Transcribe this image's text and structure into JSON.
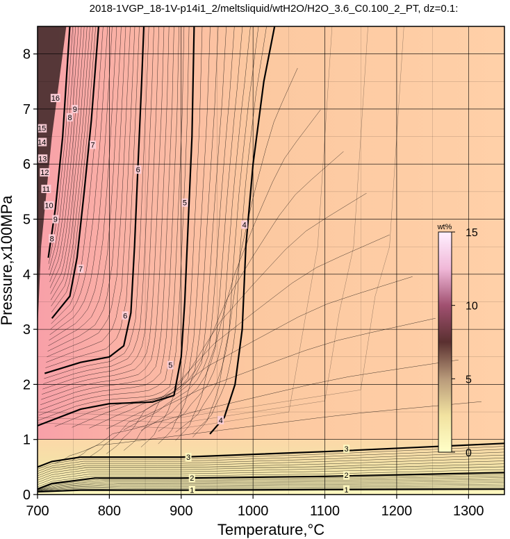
{
  "chart_data": {
    "type": "heatmap",
    "title": "2018-1VGP_18-1V-p14i1_2/meltsliquid/wtH2O/H2O_3.6_C0.100_2_PT, dz=0.1:",
    "xlabel": "Temperature,°C",
    "ylabel": "Pressure,x100MPa",
    "xlim": [
      700,
      1350
    ],
    "ylim": [
      0,
      8.5
    ],
    "x_ticks": [
      700,
      800,
      900,
      1000,
      1100,
      1200,
      1300
    ],
    "y_ticks": [
      0,
      1,
      2,
      3,
      4,
      5,
      6,
      7,
      8
    ],
    "grid": true,
    "colorbar": {
      "title": "wt%",
      "range": [
        0,
        15
      ],
      "ticks": [
        0,
        5,
        10,
        15
      ],
      "colors": [
        "#ffffc8",
        "#f2e2a0",
        "#b89a7a",
        "#5a3030",
        "#a05070",
        "#f0b8d8",
        "#fff0ff"
      ]
    },
    "major_contours": [
      {
        "level": "1",
        "points": [
          [
            700,
            0.05
          ],
          [
            760,
            0.08
          ],
          [
            900,
            0.08
          ],
          [
            1100,
            0.09
          ],
          [
            1350,
            0.1
          ]
        ]
      },
      {
        "level": "2",
        "points": [
          [
            700,
            0.1
          ],
          [
            720,
            0.2
          ],
          [
            780,
            0.3
          ],
          [
            900,
            0.3
          ],
          [
            1100,
            0.33
          ],
          [
            1350,
            0.4
          ]
        ]
      },
      {
        "level": "3",
        "points": [
          [
            700,
            0.5
          ],
          [
            720,
            0.6
          ],
          [
            760,
            0.68
          ],
          [
            900,
            0.68
          ],
          [
            1100,
            0.78
          ],
          [
            1350,
            0.93
          ]
        ]
      },
      {
        "level": "4",
        "points": [
          [
            940,
            1.1
          ],
          [
            960,
            1.4
          ],
          [
            975,
            2.0
          ],
          [
            985,
            3.0
          ],
          [
            990,
            4.5
          ],
          [
            1000,
            6.0
          ],
          [
            1015,
            7.5
          ],
          [
            1030,
            8.5
          ]
        ]
      },
      {
        "level": "5",
        "points": [
          [
            700,
            1.25
          ],
          [
            760,
            1.55
          ],
          [
            800,
            1.65
          ],
          [
            860,
            1.68
          ],
          [
            890,
            1.8
          ],
          [
            900,
            2.5
          ],
          [
            905,
            3.5
          ],
          [
            910,
            5.0
          ],
          [
            915,
            6.5
          ],
          [
            918,
            8.5
          ]
        ]
      },
      {
        "level": "6",
        "points": [
          [
            710,
            2.2
          ],
          [
            760,
            2.4
          ],
          [
            800,
            2.5
          ],
          [
            820,
            2.7
          ],
          [
            830,
            3.3
          ],
          [
            835,
            4.5
          ],
          [
            840,
            6.0
          ],
          [
            845,
            7.5
          ],
          [
            848,
            8.5
          ]
        ]
      },
      {
        "level": "7",
        "points": [
          [
            720,
            3.2
          ],
          [
            745,
            3.6
          ],
          [
            755,
            4.3
          ],
          [
            765,
            5.5
          ],
          [
            775,
            6.8
          ],
          [
            782,
            8.0
          ],
          [
            785,
            8.5
          ]
        ]
      },
      {
        "level": "8",
        "points": [
          [
            715,
            4.3
          ],
          [
            725,
            5.2
          ],
          [
            735,
            6.5
          ],
          [
            745,
            8.5
          ]
        ]
      }
    ],
    "contour_labels": [
      {
        "text": "1",
        "x": 915,
        "y": 0.08
      },
      {
        "text": "1",
        "x": 1130,
        "y": 0.09
      },
      {
        "text": "2",
        "x": 915,
        "y": 0.3
      },
      {
        "text": "2",
        "x": 1130,
        "y": 0.35
      },
      {
        "text": "3",
        "x": 910,
        "y": 0.68
      },
      {
        "text": "3",
        "x": 1130,
        "y": 0.83
      },
      {
        "text": "4",
        "x": 955,
        "y": 1.35
      },
      {
        "text": "4",
        "x": 988,
        "y": 4.9
      },
      {
        "text": "5",
        "x": 885,
        "y": 2.35
      },
      {
        "text": "5",
        "x": 905,
        "y": 5.3
      },
      {
        "text": "6",
        "x": 822,
        "y": 3.25
      },
      {
        "text": "6",
        "x": 840,
        "y": 5.9
      },
      {
        "text": "7",
        "x": 760,
        "y": 4.1
      },
      {
        "text": "7",
        "x": 777,
        "y": 6.35
      },
      {
        "text": "8",
        "x": 720,
        "y": 4.65
      },
      {
        "text": "8",
        "x": 745,
        "y": 6.85
      },
      {
        "text": "9",
        "x": 725,
        "y": 5.0
      },
      {
        "text": "9",
        "x": 752,
        "y": 7.0
      },
      {
        "text": "10",
        "x": 716,
        "y": 5.25
      },
      {
        "text": "11",
        "x": 712,
        "y": 5.55
      },
      {
        "text": "12",
        "x": 710,
        "y": 5.85
      },
      {
        "text": "13",
        "x": 707,
        "y": 6.1
      },
      {
        "text": "14",
        "x": 706,
        "y": 6.4
      },
      {
        "text": "15",
        "x": 706,
        "y": 6.65
      },
      {
        "text": "16",
        "x": 725,
        "y": 7.2
      }
    ]
  }
}
